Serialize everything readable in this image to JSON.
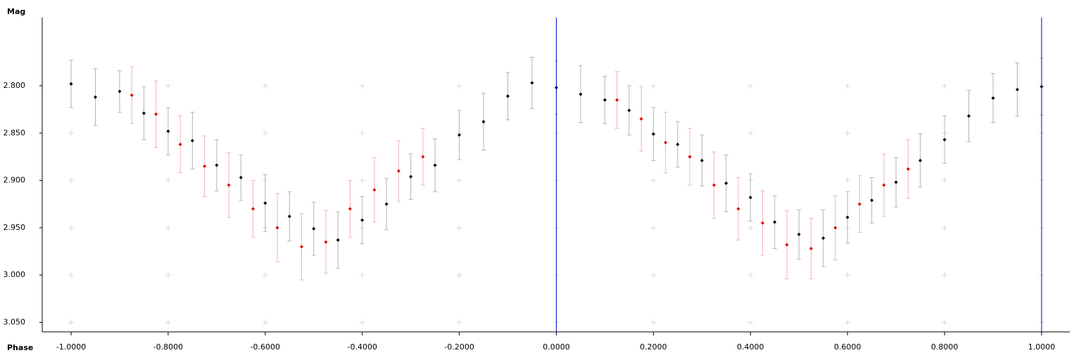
{
  "chart_data": {
    "type": "scatter",
    "xlabel": "Phase",
    "ylabel": "Mag",
    "xlim": [
      -1.0595,
      1.058
    ],
    "ylim": [
      2.728,
      3.06
    ],
    "y_inverted": true,
    "xticks": [
      {
        "value": -1.0,
        "label": "-1.0000"
      },
      {
        "value": -0.8,
        "label": "-0.8000"
      },
      {
        "value": -0.6,
        "label": "-0.6000"
      },
      {
        "value": -0.4,
        "label": "-0.4000"
      },
      {
        "value": -0.2,
        "label": "-0.2000"
      },
      {
        "value": 0,
        "label": "0.0000"
      },
      {
        "value": 0.2,
        "label": "0.2000"
      },
      {
        "value": 0.4,
        "label": "0.4000"
      },
      {
        "value": 0.6,
        "label": "0.6000"
      },
      {
        "value": 0.8,
        "label": "0.8000"
      },
      {
        "value": 1.0,
        "label": "1.0000"
      }
    ],
    "yticks": [
      {
        "value": 2.8,
        "label": "2.800"
      },
      {
        "value": 2.85,
        "label": "2.850"
      },
      {
        "value": 2.9,
        "label": "2.900"
      },
      {
        "value": 2.95,
        "label": "2.950"
      },
      {
        "value": 3.0,
        "label": "3.000"
      },
      {
        "value": 3.05,
        "label": "3.050"
      }
    ],
    "grid": true,
    "vlines": [
      0,
      1
    ],
    "vline_color": "#0000cc",
    "series": [
      {
        "color": "#000000",
        "error_color": "#b4b4b4",
        "x": [
          -1.0,
          -0.95,
          -0.9,
          -0.85,
          -0.8,
          -0.75,
          -0.7,
          -0.65,
          -0.6,
          -0.55,
          -0.5,
          -0.45,
          -0.4,
          -0.35,
          -0.3,
          -0.25,
          -0.2,
          -0.15,
          -0.1,
          -0.05,
          0.0,
          0.05,
          0.1,
          0.15,
          0.2,
          0.25,
          0.3,
          0.35,
          0.4,
          0.45,
          0.5,
          0.55,
          0.6,
          0.65,
          0.7,
          0.75,
          0.8,
          0.85,
          0.9,
          0.95,
          1.0
        ],
        "values": [
          2.798,
          2.812,
          2.806,
          2.829,
          2.848,
          2.858,
          2.884,
          2.897,
          2.924,
          2.938,
          2.951,
          2.963,
          2.942,
          2.925,
          2.896,
          2.884,
          2.852,
          2.838,
          2.811,
          2.797,
          2.802,
          2.809,
          2.815,
          2.826,
          2.851,
          2.862,
          2.879,
          2.903,
          2.918,
          2.944,
          2.957,
          2.961,
          2.939,
          2.921,
          2.902,
          2.879,
          2.857,
          2.832,
          2.813,
          2.804,
          2.801
        ],
        "errors": [
          0.025,
          0.03,
          0.022,
          0.028,
          0.025,
          0.03,
          0.027,
          0.024,
          0.03,
          0.026,
          0.028,
          0.03,
          0.025,
          0.027,
          0.024,
          0.028,
          0.026,
          0.03,
          0.025,
          0.027,
          0.028,
          0.03,
          0.025,
          0.026,
          0.028,
          0.024,
          0.027,
          0.03,
          0.025,
          0.028,
          0.026,
          0.03,
          0.027,
          0.024,
          0.026,
          0.028,
          0.025,
          0.027,
          0.026,
          0.028,
          0.03
        ]
      },
      {
        "color": "#e00000",
        "error_color": "#f4b4b4",
        "x": [
          -0.875,
          -0.825,
          -0.775,
          -0.725,
          -0.675,
          -0.625,
          -0.575,
          -0.525,
          -0.475,
          -0.425,
          -0.375,
          -0.325,
          -0.275,
          0.125,
          0.175,
          0.225,
          0.275,
          0.325,
          0.375,
          0.425,
          0.475,
          0.525,
          0.575,
          0.625,
          0.675,
          0.725
        ],
        "values": [
          2.81,
          2.83,
          2.862,
          2.885,
          2.905,
          2.93,
          2.95,
          2.97,
          2.965,
          2.93,
          2.91,
          2.89,
          2.875,
          2.815,
          2.835,
          2.86,
          2.875,
          2.905,
          2.93,
          2.945,
          2.968,
          2.972,
          2.95,
          2.925,
          2.905,
          2.888
        ],
        "errors": [
          0.03,
          0.035,
          0.03,
          0.032,
          0.034,
          0.03,
          0.036,
          0.035,
          0.033,
          0.03,
          0.034,
          0.032,
          0.03,
          0.03,
          0.034,
          0.032,
          0.03,
          0.035,
          0.033,
          0.034,
          0.036,
          0.032,
          0.034,
          0.03,
          0.033,
          0.031
        ]
      }
    ]
  }
}
